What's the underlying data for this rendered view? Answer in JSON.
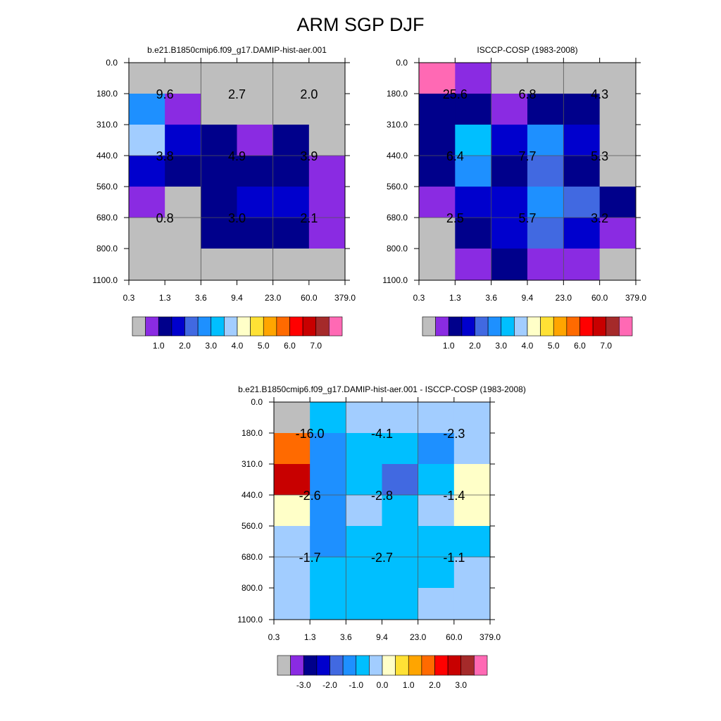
{
  "figure_title": "ARM SGP DJF",
  "chart_data": [
    {
      "type": "heatmap",
      "title": "b.e21.B1850cmip6.f09_g17.DAMIP-hist-aer.001",
      "x_ticks": [
        "0.3",
        "1.3",
        "3.6",
        "9.4",
        "23.0",
        "60.0",
        "379.0"
      ],
      "y_ticks": [
        "0.0",
        "180.0",
        "310.0",
        "440.0",
        "560.0",
        "680.0",
        "800.0",
        "1100.0"
      ],
      "cell_colors": [
        [
          "#bebebe",
          "#bebebe",
          "#bebebe",
          "#bebebe",
          "#bebebe",
          "#bebebe"
        ],
        [
          "#1e90ff",
          "#8a2be2",
          "#bebebe",
          "#bebebe",
          "#bebebe",
          "#bebebe"
        ],
        [
          "#a2cdff",
          "#0000cd",
          "#00008b",
          "#8a2be2",
          "#00008b",
          "#bebebe"
        ],
        [
          "#0000cd",
          "#00008b",
          "#00008b",
          "#00008b",
          "#00008b",
          "#8a2be2"
        ],
        [
          "#8a2be2",
          "#bebebe",
          "#00008b",
          "#0000cd",
          "#0000cd",
          "#8a2be2"
        ],
        [
          "#bebebe",
          "#bebebe",
          "#00008b",
          "#00008b",
          "#00008b",
          "#8a2be2"
        ],
        [
          "#bebebe",
          "#bebebe",
          "#bebebe",
          "#bebebe",
          "#bebebe",
          "#bebebe"
        ]
      ],
      "summary_labels": [
        [
          "9.6",
          "2.7",
          "2.0"
        ],
        [
          "3.8",
          "4.9",
          "3.9"
        ],
        [
          "0.8",
          "3.0",
          "2.1"
        ]
      ],
      "colorbar": {
        "colors": [
          "#bebebe",
          "#8a2be2",
          "#00008b",
          "#0000cd",
          "#4169e1",
          "#1e90ff",
          "#00bfff",
          "#a2cdff",
          "#ffffc8",
          "#ffe135",
          "#ffa500",
          "#ff6a00",
          "#ff0000",
          "#c80000",
          "#a52a2a",
          "#ff69b4"
        ],
        "labels": [
          "1.0",
          "2.0",
          "3.0",
          "4.0",
          "5.0",
          "6.0",
          "7.0"
        ]
      }
    },
    {
      "type": "heatmap",
      "title": "ISCCP-COSP (1983-2008)",
      "x_ticks": [
        "0.3",
        "1.3",
        "3.6",
        "9.4",
        "23.0",
        "60.0",
        "379.0"
      ],
      "y_ticks": [
        "0.0",
        "180.0",
        "310.0",
        "440.0",
        "560.0",
        "680.0",
        "800.0",
        "1100.0"
      ],
      "cell_colors": [
        [
          "#ff69b4",
          "#8a2be2",
          "#bebebe",
          "#bebebe",
          "#bebebe",
          "#bebebe"
        ],
        [
          "#00008b",
          "#00008b",
          "#8a2be2",
          "#00008b",
          "#00008b",
          "#bebebe"
        ],
        [
          "#00008b",
          "#00bfff",
          "#0000cd",
          "#1e90ff",
          "#0000cd",
          "#bebebe"
        ],
        [
          "#00008b",
          "#1e90ff",
          "#00008b",
          "#4169e1",
          "#00008b",
          "#bebebe"
        ],
        [
          "#8a2be2",
          "#0000cd",
          "#0000cd",
          "#1e90ff",
          "#4169e1",
          "#00008b"
        ],
        [
          "#bebebe",
          "#00008b",
          "#0000cd",
          "#4169e1",
          "#0000cd",
          "#8a2be2"
        ],
        [
          "#bebebe",
          "#8a2be2",
          "#00008b",
          "#8a2be2",
          "#8a2be2",
          "#bebebe"
        ]
      ],
      "summary_labels": [
        [
          "25.6",
          "6.8",
          "4.3"
        ],
        [
          "6.4",
          "7.7",
          "5.3"
        ],
        [
          "2.5",
          "5.7",
          "3.2"
        ]
      ],
      "colorbar": {
        "colors": [
          "#bebebe",
          "#8a2be2",
          "#00008b",
          "#0000cd",
          "#4169e1",
          "#1e90ff",
          "#00bfff",
          "#a2cdff",
          "#ffffc8",
          "#ffe135",
          "#ffa500",
          "#ff6a00",
          "#ff0000",
          "#c80000",
          "#a52a2a",
          "#ff69b4"
        ],
        "labels": [
          "1.0",
          "2.0",
          "3.0",
          "4.0",
          "5.0",
          "6.0",
          "7.0"
        ]
      }
    },
    {
      "type": "heatmap",
      "title": "b.e21.B1850cmip6.f09_g17.DAMIP-hist-aer.001 - ISCCP-COSP (1983-2008)",
      "x_ticks": [
        "0.3",
        "1.3",
        "3.6",
        "9.4",
        "23.0",
        "60.0",
        "379.0"
      ],
      "y_ticks": [
        "0.0",
        "180.0",
        "310.0",
        "440.0",
        "560.0",
        "680.0",
        "800.0",
        "1100.0"
      ],
      "cell_colors": [
        [
          "#bebebe",
          "#00bfff",
          "#a2cdff",
          "#a2cdff",
          "#a2cdff",
          "#a2cdff"
        ],
        [
          "#ff6a00",
          "#1e90ff",
          "#00bfff",
          "#00bfff",
          "#1e90ff",
          "#a2cdff"
        ],
        [
          "#c80000",
          "#1e90ff",
          "#00bfff",
          "#4169e1",
          "#00bfff",
          "#ffffc8"
        ],
        [
          "#ffffc8",
          "#1e90ff",
          "#a2cdff",
          "#00bfff",
          "#a2cdff",
          "#ffffc8"
        ],
        [
          "#a2cdff",
          "#1e90ff",
          "#00bfff",
          "#00bfff",
          "#00bfff",
          "#00bfff"
        ],
        [
          "#a2cdff",
          "#00bfff",
          "#00bfff",
          "#00bfff",
          "#00bfff",
          "#a2cdff"
        ],
        [
          "#a2cdff",
          "#00bfff",
          "#00bfff",
          "#00bfff",
          "#a2cdff",
          "#a2cdff"
        ]
      ],
      "summary_labels": [
        [
          "-16.0",
          "-4.1",
          "-2.3"
        ],
        [
          "-2.6",
          "-2.8",
          "-1.4"
        ],
        [
          "-1.7",
          "-2.7",
          "-1.1"
        ]
      ],
      "colorbar": {
        "colors": [
          "#bebebe",
          "#8a2be2",
          "#00008b",
          "#0000cd",
          "#4169e1",
          "#1e90ff",
          "#00bfff",
          "#a2cdff",
          "#ffffc8",
          "#ffe135",
          "#ffa500",
          "#ff6a00",
          "#ff0000",
          "#c80000",
          "#a52a2a",
          "#ff69b4"
        ],
        "labels": [
          "-3.0",
          "-2.0",
          "-1.0",
          "0.0",
          "1.0",
          "2.0",
          "3.0"
        ]
      }
    }
  ]
}
